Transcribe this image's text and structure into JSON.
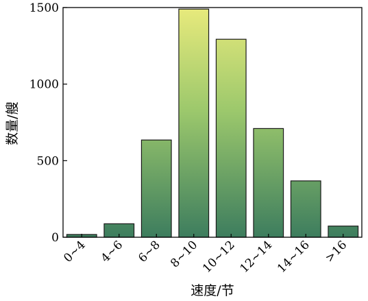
{
  "chart_data": {
    "type": "bar",
    "xlabel": "速度/节",
    "ylabel": "数量/艘",
    "categories": [
      "0~4",
      "4~6",
      "6~8",
      "8~10",
      "10~12",
      "12~14",
      "14~16",
      ">16"
    ],
    "values": [
      18,
      88,
      635,
      1490,
      1293,
      710,
      368,
      73
    ],
    "ylim": [
      0,
      1500
    ],
    "yticks": [
      0,
      500,
      1000,
      1500
    ],
    "grid": false,
    "legend": "none",
    "colors": {
      "bar_top_light": "#e8ea7c",
      "bar_mid": "#9cc86c",
      "bar_bottom": "#3d7d5e"
    }
  }
}
